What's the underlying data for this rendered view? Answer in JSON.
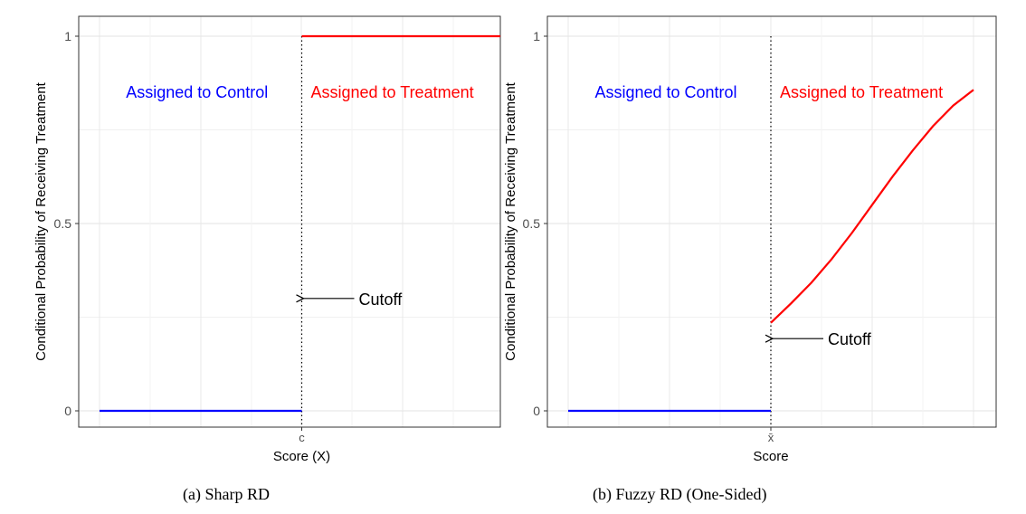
{
  "chart_data": [
    {
      "type": "line",
      "caption": "(a) Sharp RD",
      "ylabel": "Conditional Probability of Receiving Treatment",
      "xlabel": "Score (X)",
      "cutoff_tick_label": "c",
      "yticks": [
        "0",
        "0.5",
        "1"
      ],
      "ylim": [
        0,
        1
      ],
      "xlim": [
        0,
        1
      ],
      "cutoff_x": 0.5,
      "grid": true,
      "series": [
        {
          "color": "#0000ff",
          "x": [
            0.0,
            0.5
          ],
          "y": [
            0.0,
            0.0
          ]
        },
        {
          "color": "#ff0000",
          "x": [
            0.5,
            1.0
          ],
          "y": [
            1.0,
            1.0
          ]
        }
      ],
      "annotations": {
        "control": {
          "text": "Assigned to Control",
          "color": "#0000ff",
          "x": 0.25,
          "y": 0.85
        },
        "treatment": {
          "text": "Assigned to Treatment",
          "color": "#ff0000",
          "x": 0.75,
          "y": 0.85
        },
        "cutoff": {
          "text": "Cutoff",
          "y": 0.3
        }
      }
    },
    {
      "type": "line",
      "caption": "(b) Fuzzy RD (One-Sided)",
      "ylabel": "Conditional Probability of Receiving Treatment",
      "xlabel": "Score",
      "cutoff_tick_label": "x̄",
      "yticks": [
        "0",
        "0.5",
        "1"
      ],
      "ylim": [
        0,
        1
      ],
      "xlim": [
        0,
        1
      ],
      "cutoff_x": 0.5,
      "grid": true,
      "series": [
        {
          "color": "#0000ff",
          "x": [
            0.0,
            0.5
          ],
          "y": [
            0.0,
            0.0
          ]
        },
        {
          "color": "#ff0000",
          "x": [
            0.5,
            0.55,
            0.6,
            0.65,
            0.7,
            0.75,
            0.8,
            0.85,
            0.9,
            0.95,
            1.0
          ],
          "y": [
            0.235,
            0.287,
            0.342,
            0.405,
            0.475,
            0.55,
            0.625,
            0.695,
            0.76,
            0.815,
            0.857
          ]
        }
      ],
      "annotations": {
        "control": {
          "text": "Assigned to Control",
          "color": "#0000ff",
          "x": 0.25,
          "y": 0.85
        },
        "treatment": {
          "text": "Assigned to Treatment",
          "color": "#ff0000",
          "x": 0.75,
          "y": 0.85
        },
        "cutoff": {
          "text": "Cutoff",
          "y": 0.2
        }
      }
    }
  ]
}
